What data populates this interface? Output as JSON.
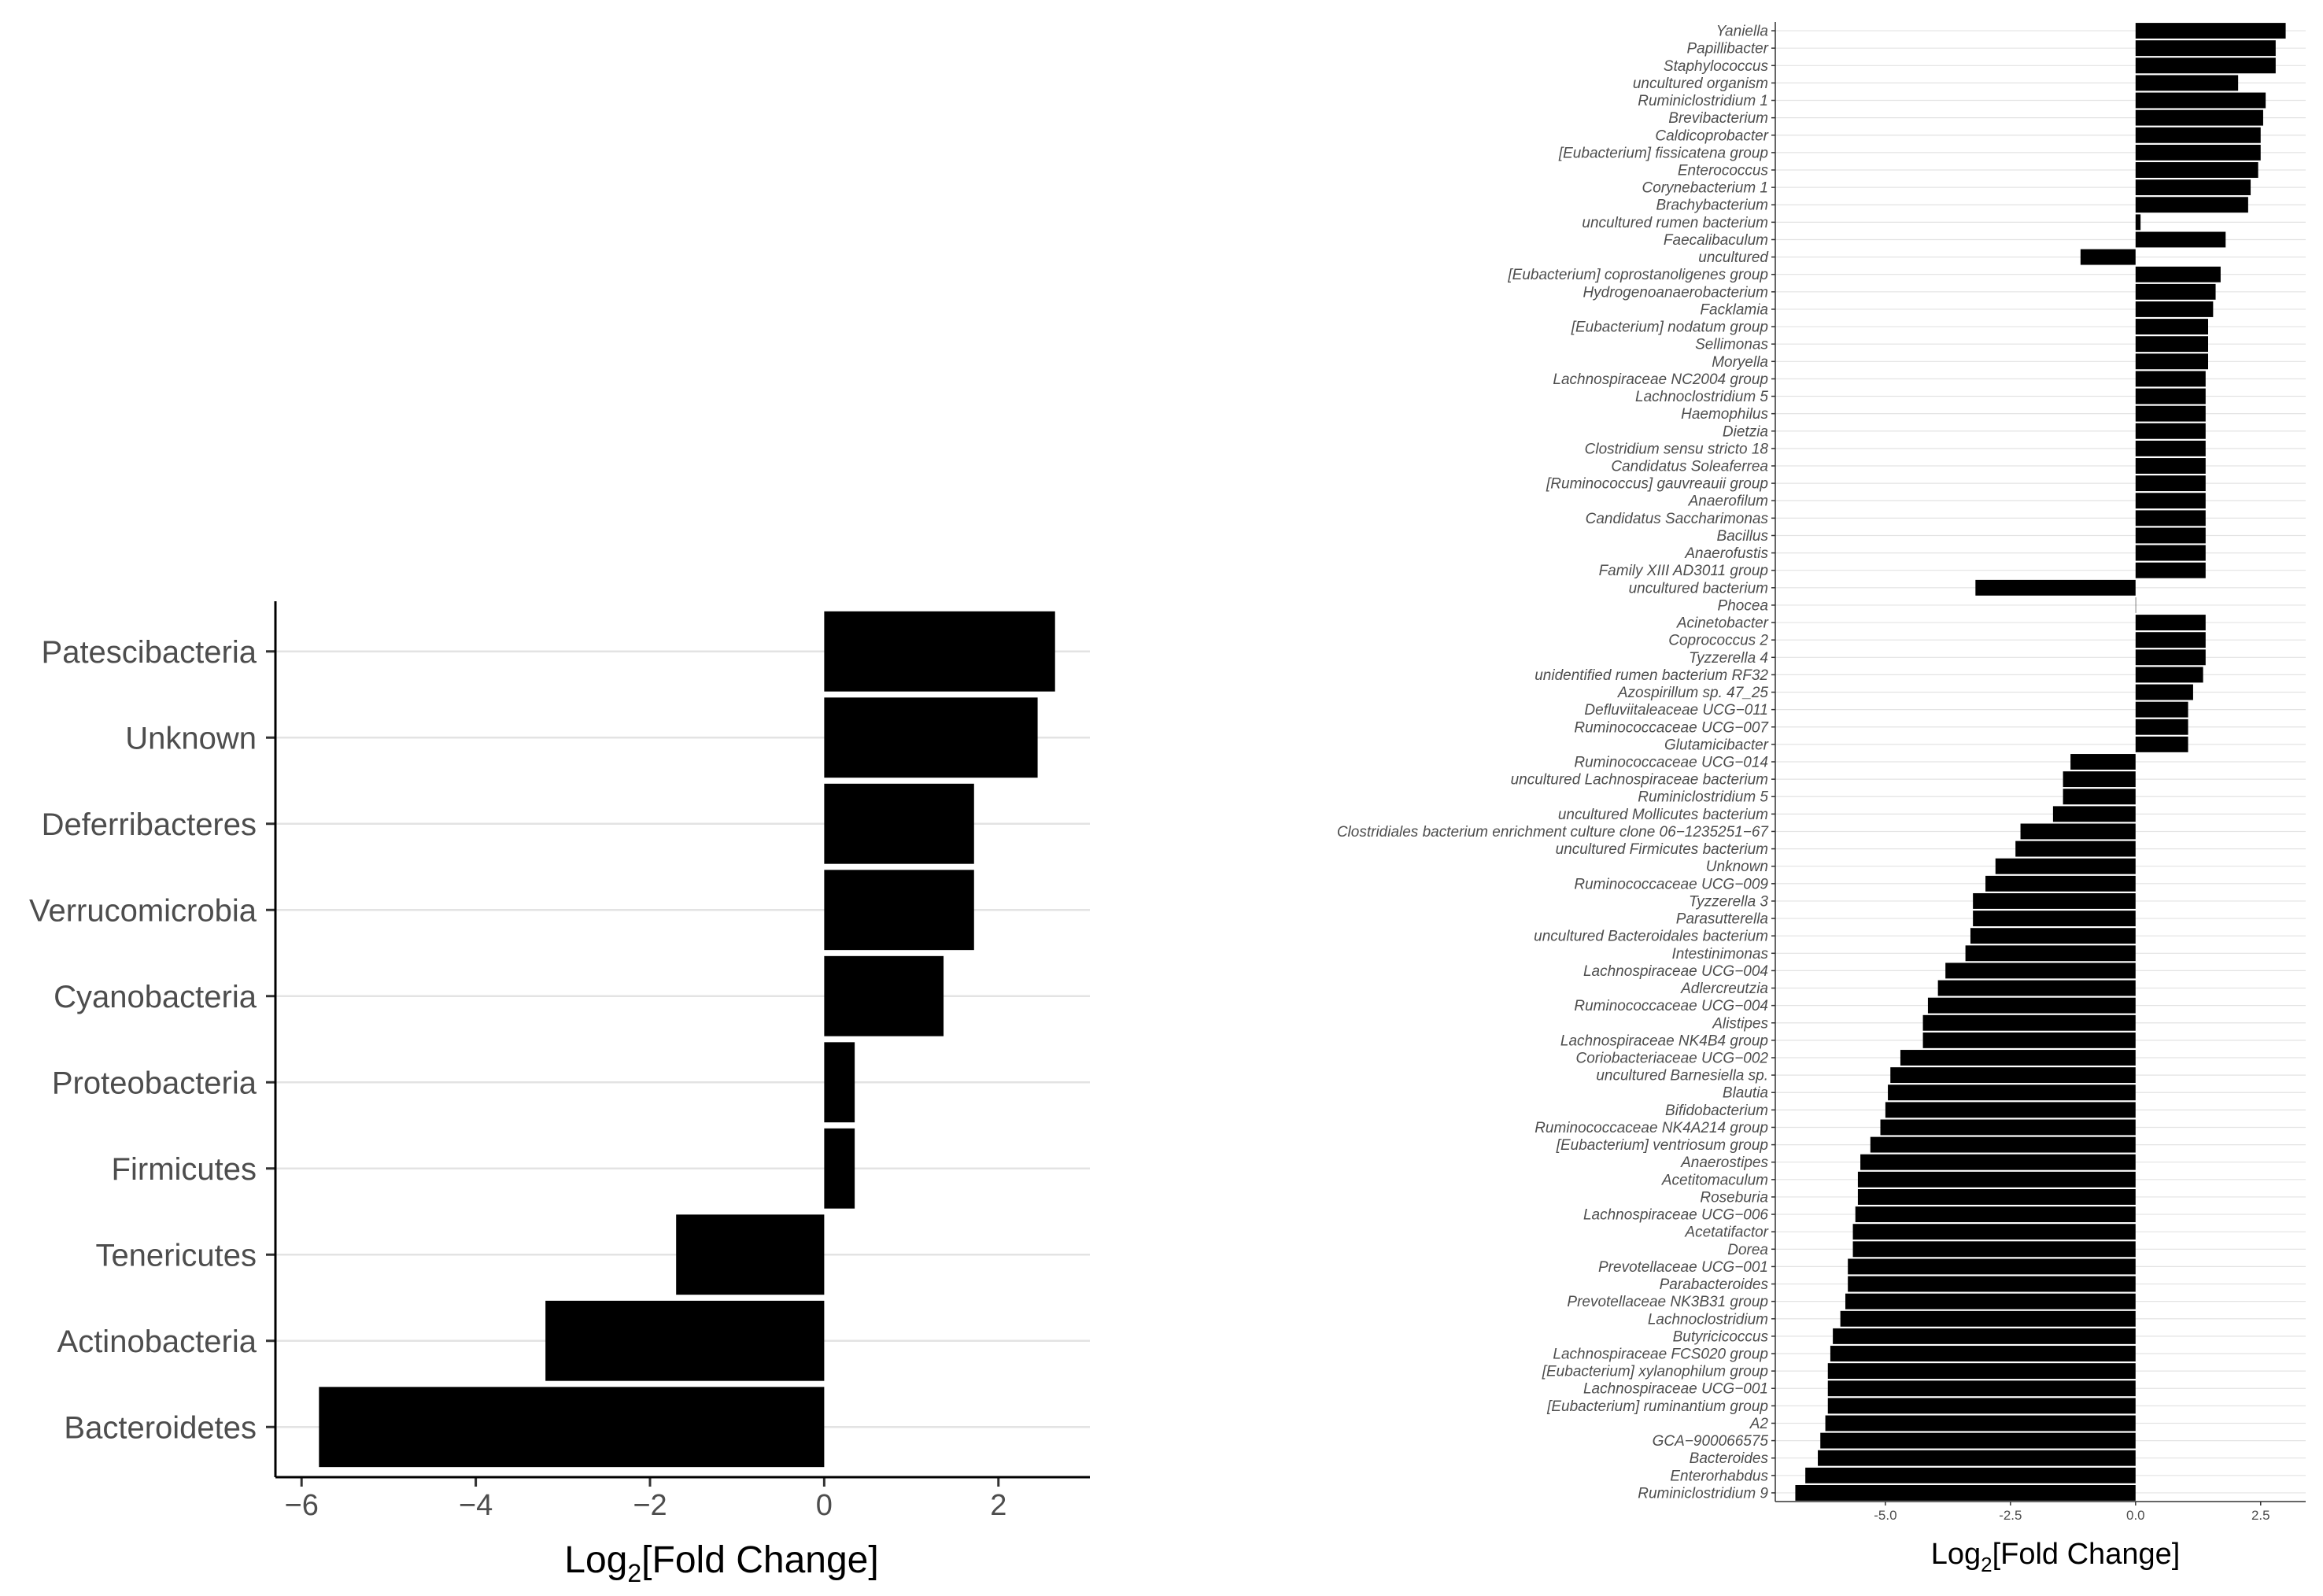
{
  "chart_data": [
    {
      "type": "bar",
      "orientation": "horizontal",
      "title": "",
      "xlabel_main": "Log",
      "xlabel_sub": "2",
      "xlabel_rest": "[Fold Change]",
      "xlim": [
        -6.3,
        3.05
      ],
      "xticks": [
        -6,
        -4,
        -2,
        0,
        2
      ],
      "xtick_labels": [
        "−6",
        "−4",
        "−2",
        "0",
        "2"
      ],
      "grid": "horizontal",
      "categories": [
        "Patescibacteria",
        "Unknown",
        "Deferribacteres",
        "Verrucomicrobia",
        "Cyanobacteria",
        "Proteobacteria",
        "Firmicutes",
        "Tenericutes",
        "Actinobacteria",
        "Bacteroidetes"
      ],
      "values": [
        2.65,
        2.45,
        1.72,
        1.72,
        1.37,
        0.35,
        0.35,
        -1.7,
        -3.2,
        -5.8
      ],
      "bar_color": "#000000"
    },
    {
      "type": "bar",
      "orientation": "horizontal",
      "title": "",
      "xlabel_main": "Log",
      "xlabel_sub": "2",
      "xlabel_rest": "[Fold Change]",
      "xlim": [
        -7.2,
        3.4
      ],
      "xticks": [
        -5.0,
        -2.5,
        0.0,
        2.5
      ],
      "xtick_labels": [
        "-5.0",
        "-2.5",
        "0.0",
        "2.5"
      ],
      "grid": "horizontal",
      "categories": [
        "Yaniella",
        "Papillibacter",
        "Staphylococcus",
        "uncultured organism",
        "Ruminiclostridium 1",
        "Brevibacterium",
        "Caldicoprobacter",
        "[Eubacterium] fissicatena group",
        "Enterococcus",
        "Corynebacterium 1",
        "Brachybacterium",
        "uncultured rumen bacterium",
        "Faecalibaculum",
        "uncultured",
        "[Eubacterium] coprostanoligenes group",
        "Hydrogenoanaerobacterium",
        "Facklamia",
        "[Eubacterium] nodatum group",
        "Sellimonas",
        "Moryella",
        "Lachnospiraceae NC2004 group",
        "Lachnoclostridium 5",
        "Haemophilus",
        "Dietzia",
        "Clostridium sensu stricto 18",
        "Candidatus Soleaferrea",
        "[Ruminococcus] gauvreauii group",
        "Anaerofilum",
        "Candidatus Saccharimonas",
        "Bacillus",
        "Anaerofustis",
        "Family XIII AD3011 group",
        "uncultured bacterium",
        "Phocea",
        "Acinetobacter",
        "Coprococcus 2",
        "Tyzzerella 4",
        "unidentified rumen bacterium RF32",
        "Azospirillum sp. 47_25",
        "Defluviitaleaceae UCG−011",
        "Ruminococcaceae UCG−007",
        "Glutamicibacter",
        "Ruminococcaceae UCG−014",
        "uncultured Lachnospiraceae bacterium",
        "Ruminiclostridium 5",
        "uncultured Mollicutes bacterium",
        "Clostridiales bacterium enrichment culture clone 06−1235251−67",
        "uncultured Firmicutes bacterium",
        "Unknown",
        "Ruminococcaceae UCG−009",
        "Tyzzerella 3",
        "Parasutterella",
        "uncultured Bacteroidales bacterium",
        "Intestinimonas",
        "Lachnospiraceae UCG−004",
        "Adlercreutzia",
        "Ruminococcaceae UCG−004",
        "Alistipes",
        "Lachnospiraceae NK4B4 group",
        "Coriobacteriaceae UCG−002",
        "uncultured Barnesiella sp.",
        "Blautia",
        "Bifidobacterium",
        "Ruminococcaceae NK4A214 group",
        "[Eubacterium] ventriosum group",
        "Anaerostipes",
        "Acetitomaculum",
        "Roseburia",
        "Lachnospiraceae UCG−006",
        "Acetatifactor",
        "Dorea",
        "Prevotellaceae UCG−001",
        "Parabacteroides",
        "Prevotellaceae NK3B31 group",
        "Lachnoclostridium",
        "Butyricicoccus",
        "Lachnospiraceae FCS020 group",
        "[Eubacterium] xylanophilum group",
        "Lachnospiraceae UCG−001",
        "[Eubacterium] ruminantium group",
        "A2",
        "GCA−900066575",
        "Bacteroides",
        "Enterorhabdus",
        "Ruminiclostridium 9"
      ],
      "values": [
        3.0,
        2.8,
        2.8,
        2.05,
        2.6,
        2.55,
        2.5,
        2.5,
        2.45,
        2.3,
        2.25,
        0.1,
        1.8,
        -1.1,
        1.7,
        1.6,
        1.55,
        1.45,
        1.45,
        1.45,
        1.4,
        1.4,
        1.4,
        1.4,
        1.4,
        1.4,
        1.4,
        1.4,
        1.4,
        1.4,
        1.4,
        1.4,
        -3.2,
        0.0,
        1.4,
        1.4,
        1.4,
        1.35,
        1.15,
        1.05,
        1.05,
        1.05,
        -1.3,
        -1.45,
        -1.45,
        -1.65,
        -2.3,
        -2.4,
        -2.8,
        -3.0,
        -3.25,
        -3.25,
        -3.3,
        -3.4,
        -3.8,
        -3.95,
        -4.15,
        -4.25,
        -4.25,
        -4.7,
        -4.9,
        -4.95,
        -5.0,
        -5.1,
        -5.3,
        -5.5,
        -5.55,
        -5.55,
        -5.6,
        -5.65,
        -5.65,
        -5.75,
        -5.75,
        -5.8,
        -5.9,
        -6.05,
        -6.1,
        -6.15,
        -6.15,
        -6.15,
        -6.2,
        -6.3,
        -6.35,
        -6.6,
        -6.8
      ],
      "bar_color": "#000000"
    }
  ]
}
